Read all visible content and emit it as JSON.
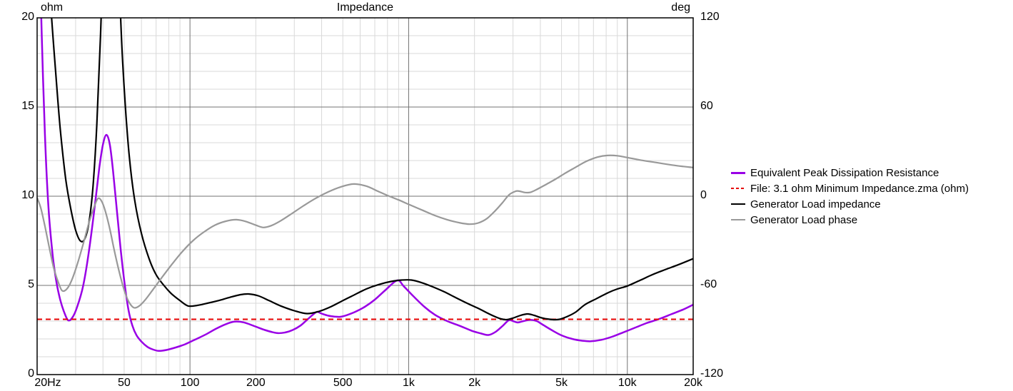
{
  "chart_data": {
    "type": "line",
    "title": "Impedance",
    "x_axis": {
      "scale": "log",
      "min": 20,
      "max": 20000,
      "ticks": [
        {
          "value": 20,
          "label": "20Hz"
        },
        {
          "value": 50,
          "label": "50"
        },
        {
          "value": 100,
          "label": "100"
        },
        {
          "value": 200,
          "label": "200"
        },
        {
          "value": 500,
          "label": "500"
        },
        {
          "value": 1000,
          "label": "1k"
        },
        {
          "value": 2000,
          "label": "2k"
        },
        {
          "value": 5000,
          "label": "5k"
        },
        {
          "value": 10000,
          "label": "10k"
        },
        {
          "value": 20000,
          "label": "20k"
        }
      ],
      "major_gridlines": [
        100,
        1000,
        10000
      ],
      "minor_gridlines": [
        30,
        40,
        50,
        60,
        70,
        80,
        90,
        200,
        300,
        400,
        500,
        600,
        700,
        800,
        900,
        2000,
        3000,
        4000,
        5000,
        6000,
        7000,
        8000,
        9000
      ]
    },
    "left_axis": {
      "unit": "ohm",
      "min": 0,
      "max": 20,
      "ticks": [
        0,
        5,
        10,
        15,
        20
      ],
      "minor_step": 1
    },
    "right_axis": {
      "unit": "deg",
      "min": -120,
      "max": 120,
      "ticks": [
        120,
        60,
        0,
        -60,
        -120
      ]
    },
    "grid": {
      "minor_color": "#d9d9d9",
      "major_color": "#737373",
      "border_color": "#000000"
    },
    "legend_position": "right",
    "series": [
      {
        "name": "Equivalent Peak Dissipation Resistance",
        "color": "#9900e6",
        "dash": "solid",
        "width": 2.5,
        "axis": "left",
        "points": [
          [
            20,
            30
          ],
          [
            20.5,
            24
          ],
          [
            21,
            19
          ],
          [
            21.7,
            13.5
          ],
          [
            22.5,
            9.5
          ],
          [
            23.5,
            6.8
          ],
          [
            24.5,
            5.2
          ],
          [
            25.5,
            4.2
          ],
          [
            26.5,
            3.55
          ],
          [
            27.7,
            3.05
          ],
          [
            29,
            3.2
          ],
          [
            30.5,
            3.8
          ],
          [
            32.5,
            5.0
          ],
          [
            34.5,
            6.9
          ],
          [
            36.5,
            9.2
          ],
          [
            38.5,
            11.6
          ],
          [
            40,
            12.9
          ],
          [
            41.5,
            13.44
          ],
          [
            43,
            12.9
          ],
          [
            44.5,
            11.4
          ],
          [
            46.5,
            9.0
          ],
          [
            48.5,
            6.7
          ],
          [
            50.5,
            4.9
          ],
          [
            52.4,
            3.6
          ],
          [
            54.5,
            2.75
          ],
          [
            57,
            2.2
          ],
          [
            60,
            1.85
          ],
          [
            64,
            1.55
          ],
          [
            68,
            1.4
          ],
          [
            72,
            1.33
          ],
          [
            78,
            1.38
          ],
          [
            86,
            1.52
          ],
          [
            95,
            1.7
          ],
          [
            105,
            1.95
          ],
          [
            118,
            2.25
          ],
          [
            132,
            2.58
          ],
          [
            146,
            2.83
          ],
          [
            160,
            2.97
          ],
          [
            176,
            2.93
          ],
          [
            196,
            2.73
          ],
          [
            220,
            2.5
          ],
          [
            250,
            2.33
          ],
          [
            272,
            2.36
          ],
          [
            295,
            2.5
          ],
          [
            320,
            2.75
          ],
          [
            345,
            3.1
          ],
          [
            368,
            3.4
          ],
          [
            382,
            3.52
          ],
          [
            400,
            3.42
          ],
          [
            430,
            3.3
          ],
          [
            460,
            3.25
          ],
          [
            487,
            3.24
          ],
          [
            520,
            3.33
          ],
          [
            570,
            3.52
          ],
          [
            630,
            3.8
          ],
          [
            700,
            4.2
          ],
          [
            780,
            4.72
          ],
          [
            886,
            5.28
          ],
          [
            950,
            4.95
          ],
          [
            1050,
            4.4
          ],
          [
            1180,
            3.8
          ],
          [
            1320,
            3.35
          ],
          [
            1500,
            3.0
          ],
          [
            1700,
            2.75
          ],
          [
            1950,
            2.45
          ],
          [
            2150,
            2.3
          ],
          [
            2320,
            2.22
          ],
          [
            2500,
            2.4
          ],
          [
            2700,
            2.75
          ],
          [
            2870,
            3.05
          ],
          [
            3000,
            3.0
          ],
          [
            3150,
            2.92
          ],
          [
            3350,
            3.0
          ],
          [
            3600,
            3.07
          ],
          [
            3850,
            3.0
          ],
          [
            4100,
            2.8
          ],
          [
            4500,
            2.5
          ],
          [
            5000,
            2.2
          ],
          [
            5600,
            2.0
          ],
          [
            6200,
            1.9
          ],
          [
            6800,
            1.87
          ],
          [
            7600,
            1.95
          ],
          [
            8500,
            2.12
          ],
          [
            9500,
            2.35
          ],
          [
            10800,
            2.62
          ],
          [
            12200,
            2.88
          ],
          [
            14000,
            3.12
          ],
          [
            16000,
            3.4
          ],
          [
            18000,
            3.65
          ],
          [
            20000,
            3.92
          ]
        ]
      },
      {
        "name": "File: 3.1 ohm Minimum Impedance.zma (ohm)",
        "color": "#e60000",
        "dash": "dashed",
        "width": 2,
        "axis": "left",
        "points": [
          [
            20,
            3.1
          ],
          [
            20000,
            3.1
          ]
        ]
      },
      {
        "name": "Generator Load impedance",
        "color": "#000000",
        "dash": "solid",
        "width": 2.2,
        "axis": "left",
        "points": [
          [
            20,
            34
          ],
          [
            21.5,
            27
          ],
          [
            23,
            21
          ],
          [
            24.3,
            17
          ],
          [
            25.5,
            13.8
          ],
          [
            27,
            11
          ],
          [
            28.5,
            9.3
          ],
          [
            30,
            8.1
          ],
          [
            31.5,
            7.5
          ],
          [
            33,
            7.6
          ],
          [
            34.5,
            8.5
          ],
          [
            36,
            10.5
          ],
          [
            37.5,
            14
          ],
          [
            39,
            19
          ],
          [
            40.5,
            25
          ],
          [
            42,
            30
          ],
          [
            44,
            31
          ],
          [
            46,
            27
          ],
          [
            47.5,
            22
          ],
          [
            49,
            18
          ],
          [
            51,
            14.5
          ],
          [
            53,
            12
          ],
          [
            56,
            9.7
          ],
          [
            60,
            7.9
          ],
          [
            65,
            6.5
          ],
          [
            70,
            5.6
          ],
          [
            76,
            5.0
          ],
          [
            82,
            4.55
          ],
          [
            90,
            4.15
          ],
          [
            98,
            3.85
          ],
          [
            108,
            3.88
          ],
          [
            120,
            4.0
          ],
          [
            135,
            4.15
          ],
          [
            152,
            4.33
          ],
          [
            170,
            4.48
          ],
          [
            185,
            4.52
          ],
          [
            205,
            4.42
          ],
          [
            230,
            4.15
          ],
          [
            260,
            3.85
          ],
          [
            300,
            3.58
          ],
          [
            343,
            3.42
          ],
          [
            390,
            3.55
          ],
          [
            440,
            3.8
          ],
          [
            500,
            4.15
          ],
          [
            560,
            4.45
          ],
          [
            640,
            4.8
          ],
          [
            730,
            5.05
          ],
          [
            830,
            5.22
          ],
          [
            930,
            5.3
          ],
          [
            1030,
            5.3
          ],
          [
            1150,
            5.15
          ],
          [
            1300,
            4.9
          ],
          [
            1450,
            4.65
          ],
          [
            1650,
            4.3
          ],
          [
            1850,
            4.0
          ],
          [
            2050,
            3.75
          ],
          [
            2250,
            3.5
          ],
          [
            2450,
            3.28
          ],
          [
            2650,
            3.12
          ],
          [
            2800,
            3.08
          ],
          [
            3000,
            3.17
          ],
          [
            3250,
            3.32
          ],
          [
            3500,
            3.4
          ],
          [
            3750,
            3.32
          ],
          [
            4000,
            3.2
          ],
          [
            4300,
            3.12
          ],
          [
            4600,
            3.08
          ],
          [
            4900,
            3.1
          ],
          [
            5300,
            3.25
          ],
          [
            5800,
            3.5
          ],
          [
            6400,
            3.92
          ],
          [
            7200,
            4.25
          ],
          [
            8200,
            4.6
          ],
          [
            9000,
            4.8
          ],
          [
            10000,
            4.97
          ],
          [
            11500,
            5.3
          ],
          [
            13000,
            5.6
          ],
          [
            15000,
            5.9
          ],
          [
            17000,
            6.15
          ],
          [
            20000,
            6.5
          ]
        ]
      },
      {
        "name": "Generator Load phase",
        "color": "#999999",
        "dash": "solid",
        "width": 2.2,
        "axis": "right",
        "points": [
          [
            20,
            -1
          ],
          [
            20.8,
            -8
          ],
          [
            21.7,
            -20
          ],
          [
            22.7,
            -34
          ],
          [
            23.8,
            -48
          ],
          [
            25,
            -58
          ],
          [
            26,
            -63.5
          ],
          [
            27.3,
            -62.5
          ],
          [
            28.7,
            -57
          ],
          [
            30.5,
            -46
          ],
          [
            32.5,
            -32
          ],
          [
            34.5,
            -18
          ],
          [
            36.5,
            -7
          ],
          [
            38,
            -1.5
          ],
          [
            39.5,
            -3.5
          ],
          [
            41,
            -10
          ],
          [
            43,
            -22
          ],
          [
            45,
            -36
          ],
          [
            47.5,
            -51
          ],
          [
            50,
            -63
          ],
          [
            52.5,
            -71
          ],
          [
            55.5,
            -75
          ],
          [
            59,
            -73.5
          ],
          [
            63,
            -69
          ],
          [
            68,
            -62.5
          ],
          [
            75,
            -54
          ],
          [
            83,
            -45.5
          ],
          [
            92,
            -37.5
          ],
          [
            103,
            -30
          ],
          [
            116,
            -24
          ],
          [
            130,
            -19.5
          ],
          [
            146,
            -16.8
          ],
          [
            163,
            -15.8
          ],
          [
            180,
            -17
          ],
          [
            200,
            -19.5
          ],
          [
            216,
            -21
          ],
          [
            235,
            -19.8
          ],
          [
            260,
            -16.5
          ],
          [
            290,
            -12
          ],
          [
            330,
            -6.5
          ],
          [
            375,
            -1.5
          ],
          [
            430,
            3
          ],
          [
            490,
            6.3
          ],
          [
            560,
            8.2
          ],
          [
            640,
            6.8
          ],
          [
            720,
            3.5
          ],
          [
            800,
            0.5
          ],
          [
            900,
            -2.5
          ],
          [
            1020,
            -6
          ],
          [
            1160,
            -9.5
          ],
          [
            1320,
            -13
          ],
          [
            1500,
            -15.8
          ],
          [
            1700,
            -17.8
          ],
          [
            1900,
            -18.8
          ],
          [
            2080,
            -18
          ],
          [
            2280,
            -15
          ],
          [
            2480,
            -10
          ],
          [
            2680,
            -4.5
          ],
          [
            2880,
            1
          ],
          [
            3080,
            3.3
          ],
          [
            3200,
            3.4
          ],
          [
            3400,
            2.5
          ],
          [
            3600,
            2.6
          ],
          [
            3850,
            4.5
          ],
          [
            4200,
            7.5
          ],
          [
            4700,
            11.5
          ],
          [
            5200,
            15.5
          ],
          [
            5800,
            19.5
          ],
          [
            6500,
            23.5
          ],
          [
            7300,
            26.3
          ],
          [
            8100,
            27.4
          ],
          [
            9000,
            27.2
          ],
          [
            10000,
            26
          ],
          [
            11500,
            24.3
          ],
          [
            13500,
            22.7
          ],
          [
            16000,
            21
          ],
          [
            18000,
            20
          ],
          [
            20000,
            19.3
          ]
        ]
      }
    ]
  },
  "layout_labels": {
    "title": "Impedance",
    "left_unit": "ohm",
    "right_unit": "deg"
  }
}
